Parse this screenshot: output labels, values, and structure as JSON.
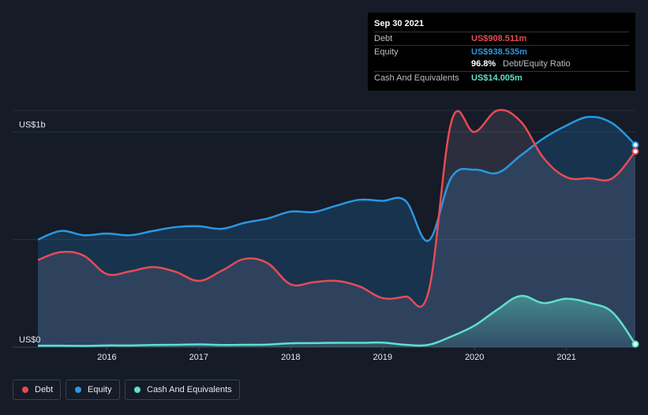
{
  "tooltip": {
    "date": "Sep 30 2021",
    "debt_label": "Debt",
    "debt_value": "US$908.511m",
    "equity_label": "Equity",
    "equity_value": "US$938.535m",
    "ratio_value": "96.8%",
    "ratio_label": "Debt/Equity Ratio",
    "cash_label": "Cash And Equivalents",
    "cash_value": "US$14.005m"
  },
  "legend": {
    "debt": "Debt",
    "equity": "Equity",
    "cash": "Cash And Equivalents"
  },
  "colors": {
    "debt": "#e64b55",
    "equity": "#2b97e0",
    "cash": "#5ee0c8",
    "background": "#151b27"
  },
  "chart_data": {
    "type": "area",
    "title": "",
    "xlabel": "",
    "ylabel": "",
    "ylim": [
      0,
      1100
    ],
    "xlim": [
      2015.25,
      2021.75
    ],
    "y_ticks": [
      {
        "value": 1000,
        "label": "US$1b"
      },
      {
        "value": 0,
        "label": "US$0"
      }
    ],
    "x_ticks": [
      2016,
      2017,
      2018,
      2019,
      2020,
      2021
    ],
    "series": [
      {
        "name": "Debt",
        "x": [
          2015.25,
          2015.5,
          2015.75,
          2016.0,
          2016.25,
          2016.5,
          2016.75,
          2017.0,
          2017.25,
          2017.5,
          2017.75,
          2018.0,
          2018.25,
          2018.5,
          2018.75,
          2019.0,
          2019.25,
          2019.5,
          2019.75,
          2020.0,
          2020.25,
          2020.5,
          2020.75,
          2021.0,
          2021.25,
          2021.5,
          2021.75
        ],
        "values": [
          405,
          442,
          425,
          340,
          352,
          372,
          350,
          308,
          355,
          410,
          390,
          292,
          302,
          308,
          282,
          228,
          235,
          258,
          1050,
          1000,
          1100,
          1050,
          880,
          790,
          785,
          785,
          910
        ]
      },
      {
        "name": "Equity",
        "x": [
          2015.25,
          2015.5,
          2015.75,
          2016.0,
          2016.25,
          2016.5,
          2016.75,
          2017.0,
          2017.25,
          2017.5,
          2017.75,
          2018.0,
          2018.25,
          2018.5,
          2018.75,
          2019.0,
          2019.25,
          2019.5,
          2019.75,
          2020.0,
          2020.25,
          2020.5,
          2020.75,
          2021.0,
          2021.25,
          2021.5,
          2021.75
        ],
        "values": [
          500,
          540,
          520,
          528,
          520,
          540,
          558,
          562,
          550,
          578,
          598,
          630,
          628,
          658,
          685,
          680,
          680,
          495,
          790,
          825,
          810,
          890,
          970,
          1030,
          1070,
          1040,
          940
        ]
      },
      {
        "name": "Cash And Equivalents",
        "x": [
          2015.25,
          2015.5,
          2015.75,
          2016.0,
          2016.25,
          2016.5,
          2016.75,
          2017.0,
          2017.25,
          2017.5,
          2017.75,
          2018.0,
          2018.25,
          2018.5,
          2018.75,
          2019.0,
          2019.25,
          2019.5,
          2019.75,
          2020.0,
          2020.25,
          2020.5,
          2020.75,
          2021.0,
          2021.25,
          2021.5,
          2021.75
        ],
        "values": [
          7,
          7,
          6,
          8,
          8,
          10,
          11,
          13,
          10,
          11,
          12,
          18,
          19,
          20,
          20,
          21,
          11,
          11,
          50,
          100,
          175,
          238,
          205,
          225,
          205,
          162,
          14
        ]
      }
    ]
  }
}
